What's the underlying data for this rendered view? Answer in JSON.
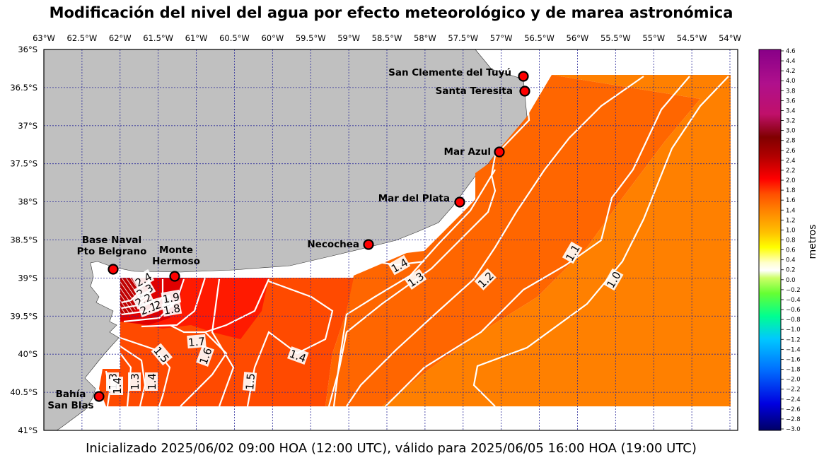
{
  "title": "Modificación del nivel del agua por efecto meteorológico y de marea astronómica",
  "footer": "Inicializado 2025/06/02 09:00 HOA (12:00 UTC), válido para 2025/06/05 16:00 HOA (19:00 UTC)",
  "colorbar": {
    "label": "metros",
    "min": -3.0,
    "max": 4.6,
    "ticks": [
      "4.6",
      "4.4",
      "4.2",
      "4.0",
      "3.8",
      "3.6",
      "3.4",
      "3.2",
      "3.0",
      "2.8",
      "2.6",
      "2.4",
      "2.2",
      "2.0",
      "1.8",
      "1.6",
      "1.4",
      "1.2",
      "1.0",
      "0.8",
      "0.6",
      "0.4",
      "0.2",
      "0.0",
      "−0.2",
      "−0.4",
      "−0.6",
      "−0.8",
      "−1.0",
      "−1.2",
      "−1.4",
      "−1.6",
      "−1.8",
      "−2.0",
      "−2.2",
      "−2.4",
      "−2.6",
      "−2.8",
      "−3.0"
    ]
  },
  "axes": {
    "lon_ticks": [
      "63°W",
      "62.5°W",
      "62°W",
      "61.5°W",
      "61°W",
      "60.5°W",
      "60°W",
      "59.5°W",
      "59°W",
      "58.5°W",
      "58°W",
      "57.5°W",
      "57°W",
      "56.5°W",
      "56°W",
      "55.5°W",
      "55°W",
      "54.5°W",
      "54°W"
    ],
    "lat_ticks": [
      "36°S",
      "36.5°S",
      "37°S",
      "37.5°S",
      "38°S",
      "38.5°S",
      "39°S",
      "39.5°S",
      "40°S",
      "40.5°S",
      "41°S"
    ]
  },
  "cities": [
    {
      "name": "San Clemente del Tuyú"
    },
    {
      "name": "Santa Teresita"
    },
    {
      "name": "Mar Azul"
    },
    {
      "name": "Mar del Plata"
    },
    {
      "name": "Necochea"
    },
    {
      "name_line1": "Base Naval",
      "name_line2": "Pto Belgrano"
    },
    {
      "name_line1": "Monte",
      "name_line2": "Hermoso"
    },
    {
      "name_line1": "Bahía",
      "name_line2": "San Blas"
    }
  ],
  "contour_labels": [
    "1.4",
    "1.3",
    "1.2",
    "1.1",
    "1.0",
    "2.4",
    "2.3",
    "2.2",
    "2.1",
    "2.0",
    "1.9",
    "1.8",
    "1.7",
    "1.6",
    "1.5",
    "1.4",
    "1.5",
    "1.3",
    "1.4",
    "1.3",
    "1.4"
  ],
  "colors": {
    "land": "#c0c0c0",
    "offshore": "#ff8000",
    "mid": "#ff6400",
    "coastal": "#ff4a00",
    "high": "#ff1a00",
    "peak": "#e00000",
    "grid": "#2b2b9a",
    "city_marker": "#ff0000"
  }
}
